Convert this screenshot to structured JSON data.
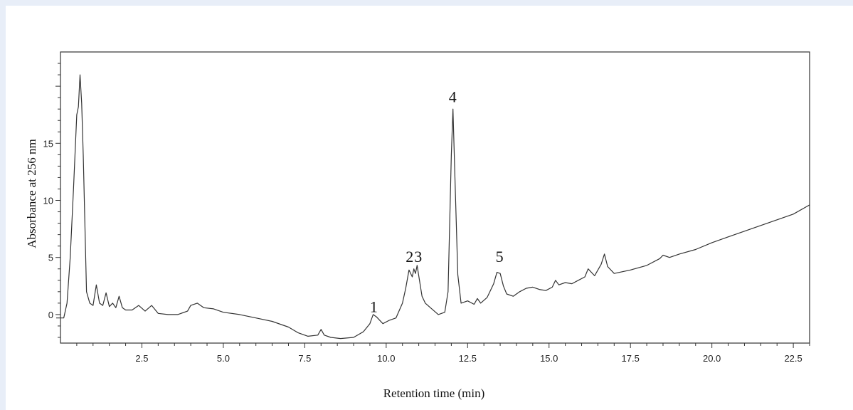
{
  "chart_data": {
    "type": "line",
    "title": "",
    "xlabel": "Retention time (min)",
    "ylabel": "Absorbance at 256 nm",
    "xlim": [
      0,
      23
    ],
    "ylim": [
      -2.5,
      23
    ],
    "x_ticks": [
      "2.5",
      "5.0",
      "7.5",
      "10.0",
      "12.5",
      "15.0",
      "17.5",
      "20.0",
      "22.5"
    ],
    "y_ticks": [
      "0",
      "5",
      "10",
      "15"
    ],
    "grid": false,
    "legend": "none",
    "line_color": "#333333",
    "peak_labels": [
      {
        "text": "1",
        "x": 9.62,
        "y": 0.2
      },
      {
        "text": "2",
        "x": 10.72,
        "y": 4.6
      },
      {
        "text": "3",
        "x": 10.98,
        "y": 4.6
      },
      {
        "text": "4",
        "x": 12.04,
        "y": 18.6
      },
      {
        "text": "5",
        "x": 13.48,
        "y": 4.6
      }
    ],
    "series": [
      {
        "x": [
          -0.3,
          0.1,
          0.2,
          0.3,
          0.4,
          0.5,
          0.55,
          0.6,
          0.65,
          0.7,
          0.75,
          0.8,
          0.9,
          1.0,
          1.1,
          1.2,
          1.3,
          1.4,
          1.5,
          1.6,
          1.7,
          1.8,
          1.9,
          2.0,
          2.2,
          2.4,
          2.6,
          2.8,
          3.0,
          3.3,
          3.6,
          3.9,
          4.0,
          4.2,
          4.4,
          4.7,
          5.0,
          5.5,
          6.0,
          6.5,
          7.0,
          7.3,
          7.6,
          7.9,
          8.0,
          8.1,
          8.3,
          8.6,
          9.0,
          9.3,
          9.5,
          9.6,
          9.7,
          9.9,
          10.1,
          10.3,
          10.5,
          10.6,
          10.7,
          10.8,
          10.85,
          10.9,
          10.95,
          11.0,
          11.1,
          11.2,
          11.4,
          11.6,
          11.8,
          11.9,
          12.0,
          12.05,
          12.1,
          12.2,
          12.3,
          12.5,
          12.7,
          12.8,
          12.9,
          13.1,
          13.3,
          13.4,
          13.5,
          13.6,
          13.7,
          13.9,
          14.1,
          14.3,
          14.5,
          14.7,
          14.9,
          15.1,
          15.2,
          15.3,
          15.5,
          15.7,
          15.9,
          16.1,
          16.2,
          16.4,
          16.6,
          16.7,
          16.8,
          17.0,
          17.5,
          18.0,
          18.4,
          18.5,
          18.7,
          19.0,
          19.5,
          20.0,
          20.5,
          21.0,
          21.5,
          22.0,
          22.5,
          23.0
        ],
        "y": [
          -0.3,
          -0.3,
          1.0,
          5.0,
          11.0,
          17.5,
          18.2,
          21.0,
          18.5,
          14.0,
          8.0,
          2.0,
          1.0,
          0.8,
          2.6,
          1.0,
          0.8,
          1.9,
          0.7,
          1.0,
          0.6,
          1.6,
          0.6,
          0.4,
          0.4,
          0.8,
          0.3,
          0.8,
          0.1,
          0.0,
          0.0,
          0.3,
          0.8,
          1.0,
          0.6,
          0.5,
          0.2,
          0.0,
          -0.3,
          -0.6,
          -1.1,
          -1.6,
          -1.9,
          -1.8,
          -1.3,
          -1.8,
          -2.0,
          -2.1,
          -2.0,
          -1.5,
          -0.8,
          0.0,
          -0.2,
          -0.8,
          -0.5,
          -0.3,
          1.0,
          2.3,
          3.9,
          3.3,
          4.0,
          3.6,
          4.3,
          3.4,
          1.6,
          1.0,
          0.5,
          0.0,
          0.2,
          2.0,
          14.0,
          18.0,
          13.0,
          3.5,
          1.0,
          1.2,
          0.9,
          1.4,
          1.0,
          1.5,
          2.7,
          3.7,
          3.6,
          2.5,
          1.8,
          1.6,
          2.0,
          2.3,
          2.4,
          2.2,
          2.1,
          2.4,
          3.0,
          2.6,
          2.8,
          2.7,
          3.0,
          3.3,
          4.0,
          3.4,
          4.4,
          5.3,
          4.2,
          3.6,
          3.9,
          4.3,
          4.9,
          5.2,
          5.0,
          5.3,
          5.7,
          6.3,
          6.8,
          7.3,
          7.8,
          8.3,
          8.8,
          9.6
        ]
      }
    ]
  }
}
